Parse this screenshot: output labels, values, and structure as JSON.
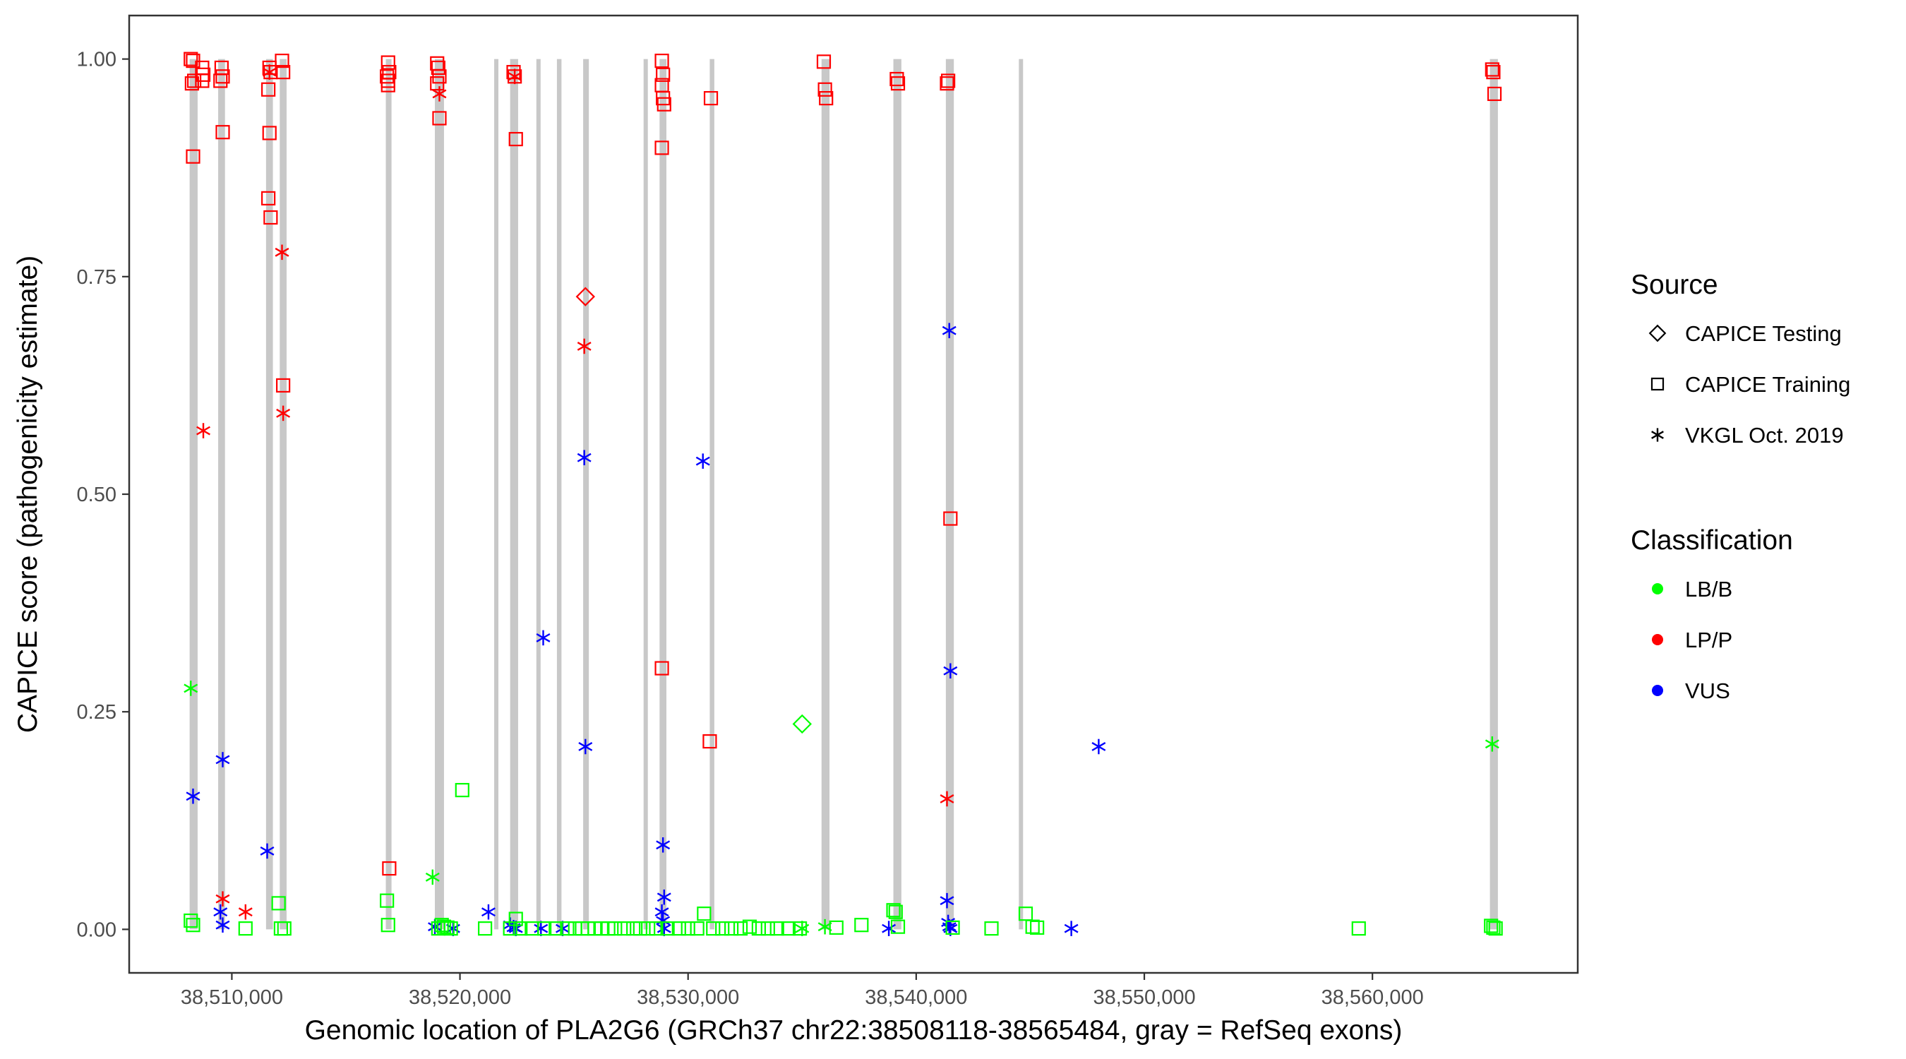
{
  "chart_data": {
    "type": "scatter",
    "xlabel": "Genomic location of PLA2G6 (GRCh37 chr22:38508118-38565484, gray = RefSeq exons)",
    "ylabel": "CAPICE score (pathogenicity estimate)",
    "xlim": [
      38505500,
      38569000
    ],
    "ylim": [
      -0.05,
      1.05
    ],
    "x_ticks": [
      38510000,
      38520000,
      38530000,
      38540000,
      38550000,
      38560000
    ],
    "x_tick_labels": [
      "38,510,000",
      "38,520,000",
      "38,530,000",
      "38,540,000",
      "38,550,000",
      "38,560,000"
    ],
    "y_ticks": [
      0,
      0.25,
      0.5,
      0.75,
      1.0
    ],
    "y_tick_labels": [
      "0.00",
      "0.25",
      "0.50",
      "0.75",
      "1.00"
    ],
    "grid": false,
    "exons": [
      {
        "start": 38508150,
        "end": 38508500
      },
      {
        "start": 38509400,
        "end": 38509700
      },
      {
        "start": 38511500,
        "end": 38511800
      },
      {
        "start": 38512100,
        "end": 38512400
      },
      {
        "start": 38516750,
        "end": 38517000
      },
      {
        "start": 38518900,
        "end": 38519300
      },
      {
        "start": 38521500,
        "end": 38521650
      },
      {
        "start": 38522200,
        "end": 38522550
      },
      {
        "start": 38523350,
        "end": 38523500
      },
      {
        "start": 38524250,
        "end": 38524450
      },
      {
        "start": 38525400,
        "end": 38525650
      },
      {
        "start": 38528050,
        "end": 38528200
      },
      {
        "start": 38528750,
        "end": 38529050
      },
      {
        "start": 38530950,
        "end": 38531150
      },
      {
        "start": 38535850,
        "end": 38536200
      },
      {
        "start": 38539000,
        "end": 38539350
      },
      {
        "start": 38541300,
        "end": 38541650
      },
      {
        "start": 38544500,
        "end": 38544650
      },
      {
        "start": 38565150,
        "end": 38565500
      }
    ],
    "legend": {
      "position": "right",
      "source_title": "Source",
      "source_items": [
        {
          "label": "CAPICE Testing",
          "shape": "diamond"
        },
        {
          "label": "CAPICE Training",
          "shape": "square"
        },
        {
          "label": "VKGL Oct. 2019",
          "shape": "asterisk"
        }
      ],
      "class_title": "Classification",
      "class_items": [
        {
          "label": "LB/B",
          "color": "#00ff00"
        },
        {
          "label": "LP/P",
          "color": "#ff0000"
        },
        {
          "label": "VUS",
          "color": "#0000ff"
        }
      ]
    },
    "colors": {
      "LB/B": "#00ff00",
      "LP/P": "#ff0000",
      "VUS": "#0000ff",
      "exon": "#c8c8c8"
    },
    "series": [
      {
        "source": "CAPICE Training",
        "classification": "LP/P",
        "shape": "square",
        "color": "#ff0000",
        "x": [
          38508200,
          38508300,
          38508350,
          38508250,
          38508300,
          38508700,
          38508750,
          38508700,
          38509550,
          38509600,
          38509500,
          38509600,
          38511650,
          38511700,
          38511600,
          38511650,
          38511600,
          38511700,
          38512200,
          38512250,
          38512250,
          38516850,
          38516900,
          38516800,
          38516850,
          38516850,
          38516900,
          38519000,
          38519050,
          38519100,
          38519000,
          38519100,
          38522350,
          38522400,
          38522450,
          38528850,
          38528900,
          38528850,
          38528900,
          38528950,
          38528850,
          38528850,
          38531000,
          38530950,
          38535950,
          38536000,
          38536050,
          38539150,
          38539200,
          38541350,
          38541400,
          38541500,
          38565250,
          38565300,
          38565350
        ],
        "y": [
          1.0,
          0.998,
          0.975,
          0.972,
          0.888,
          0.99,
          0.982,
          0.975,
          0.99,
          0.98,
          0.975,
          0.916,
          0.99,
          0.985,
          0.965,
          0.915,
          0.84,
          0.818,
          0.998,
          0.985,
          0.625,
          0.996,
          0.985,
          0.98,
          0.975,
          0.97,
          0.07,
          0.995,
          0.99,
          0.98,
          0.972,
          0.932,
          0.985,
          0.98,
          0.908,
          0.998,
          0.982,
          0.97,
          0.955,
          0.948,
          0.898,
          0.3,
          0.955,
          0.216,
          0.997,
          0.965,
          0.955,
          0.977,
          0.972,
          0.972,
          0.975,
          0.472,
          0.988,
          0.985,
          0.96
        ]
      },
      {
        "source": "VKGL Oct. 2019",
        "classification": "LP/P",
        "shape": "asterisk",
        "color": "#ff0000",
        "x": [
          38508750,
          38511650,
          38512200,
          38512250,
          38519100,
          38522400,
          38525450,
          38509600,
          38510600,
          38541350
        ],
        "y": [
          0.573,
          0.985,
          0.778,
          0.593,
          0.96,
          0.98,
          0.67,
          0.035,
          0.02,
          0.15
        ]
      },
      {
        "source": "CAPICE Testing",
        "classification": "LP/P",
        "shape": "diamond",
        "color": "#ff0000",
        "x": [
          38525500
        ],
        "y": [
          0.727
        ]
      },
      {
        "source": "CAPICE Testing",
        "classification": "LB/B",
        "shape": "diamond",
        "color": "#00ff00",
        "x": [
          38535000
        ],
        "y": [
          0.236
        ]
      },
      {
        "source": "VKGL Oct. 2019",
        "classification": "LB/B",
        "shape": "asterisk",
        "color": "#00ff00",
        "x": [
          38508200,
          38518800,
          38565250,
          38535000,
          38536000
        ],
        "y": [
          0.277,
          0.06,
          0.213,
          0.001,
          0.003
        ]
      },
      {
        "source": "VKGL Oct. 2019",
        "classification": "VUS",
        "shape": "asterisk",
        "color": "#0000ff",
        "x": [
          38508300,
          38509600,
          38509500,
          38509600,
          38511550,
          38518900,
          38519700,
          38521250,
          38522200,
          38522350,
          38522450,
          38523650,
          38523550,
          38524500,
          38525450,
          38525500,
          38528900,
          38528950,
          38528850,
          38528900,
          38528950,
          38530650,
          38538800,
          38541450,
          38541500,
          38541350,
          38541400,
          38541450,
          38541500,
          38546800,
          38548000
        ],
        "y": [
          0.153,
          0.195,
          0.02,
          0.005,
          0.09,
          0.003,
          0.001,
          0.02,
          0.005,
          0.002,
          0.001,
          0.335,
          0.001,
          0.001,
          0.542,
          0.21,
          0.097,
          0.037,
          0.02,
          0.01,
          0.001,
          0.538,
          0.001,
          0.688,
          0.297,
          0.033,
          0.008,
          0.003,
          0.001,
          0.001,
          0.21
        ]
      },
      {
        "source": "CAPICE Training",
        "classification": "LB/B",
        "shape": "square",
        "color": "#00ff00",
        "x": [
          38508200,
          38508300,
          38510600,
          38512050,
          38512150,
          38512300,
          38516800,
          38516850,
          38519050,
          38519200,
          38519300,
          38519450,
          38519600,
          38520100,
          38521100,
          38522200,
          38522450,
          38522650,
          38523150,
          38523700,
          38524200,
          38524700,
          38525050,
          38525350,
          38525600,
          38525900,
          38526200,
          38526500,
          38526800,
          38527200,
          38527600,
          38527900,
          38528250,
          38528600,
          38529100,
          38529600,
          38530000,
          38530400,
          38530700,
          38531100,
          38531500,
          38531900,
          38532300,
          38532700,
          38533100,
          38533500,
          38533900,
          38534400,
          38534900,
          38536500,
          38537600,
          38539000,
          38539100,
          38539200,
          38541600,
          38543300,
          38544800,
          38545100,
          38545300,
          38559400,
          38565200,
          38565300,
          38565400
        ],
        "y": [
          0.01,
          0.005,
          0.001,
          0.03,
          0.001,
          0.001,
          0.033,
          0.005,
          0.001,
          0.005,
          0.003,
          0.002,
          0.001,
          0.16,
          0.001,
          0.001,
          0.012,
          0.001,
          0.001,
          0.001,
          0.001,
          0.001,
          0.001,
          0.001,
          0.001,
          0.001,
          0.001,
          0.001,
          0.001,
          0.001,
          0.001,
          0.001,
          0.001,
          0.001,
          0.001,
          0.001,
          0.001,
          0.001,
          0.018,
          0.001,
          0.001,
          0.001,
          0.001,
          0.003,
          0.001,
          0.001,
          0.001,
          0.001,
          0.001,
          0.002,
          0.005,
          0.022,
          0.02,
          0.003,
          0.002,
          0.001,
          0.018,
          0.003,
          0.002,
          0.001,
          0.004,
          0.002,
          0.001
        ]
      }
    ]
  }
}
